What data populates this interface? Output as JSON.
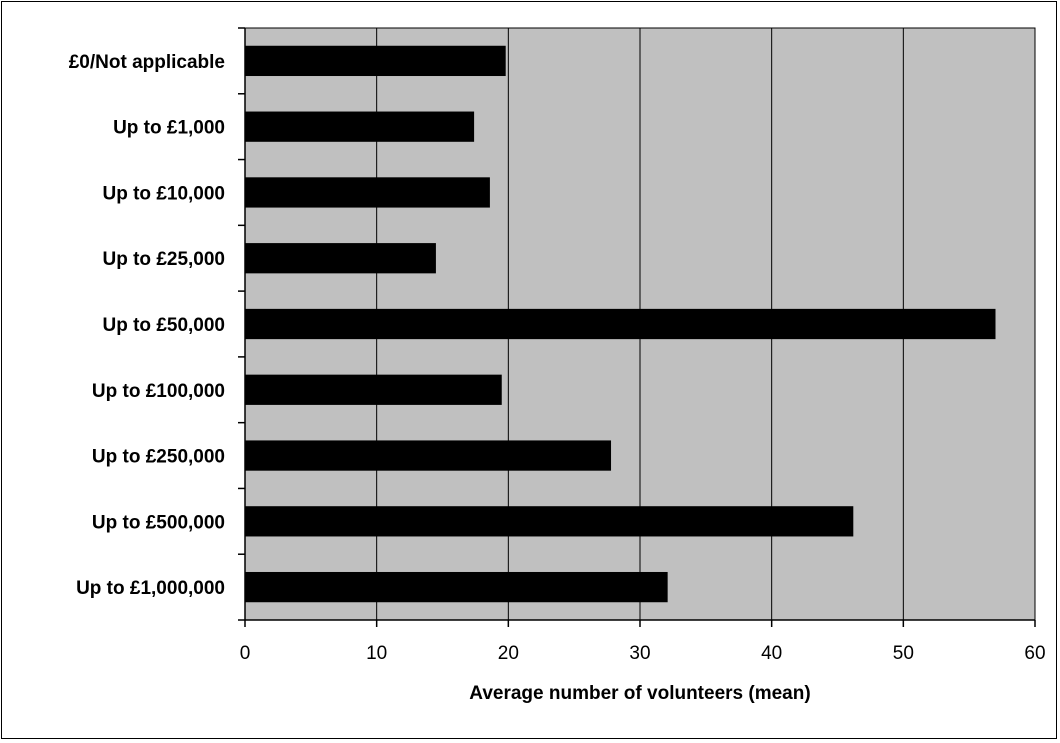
{
  "chart_data": {
    "type": "bar",
    "orientation": "horizontal",
    "categories": [
      "£0/Not applicable",
      "Up to £1,000",
      "Up to £10,000",
      "Up to £25,000",
      "Up to £50,000",
      "Up to £100,000",
      "Up to £250,000",
      "Up to £500,000",
      "Up to £1,000,000"
    ],
    "values": [
      19.8,
      17.4,
      18.6,
      14.5,
      57.0,
      19.5,
      27.8,
      46.2,
      32.1
    ],
    "title": "",
    "xlabel": "Average number of volunteers (mean)",
    "ylabel": "",
    "xlim": [
      0,
      60
    ],
    "xticks": [
      "0",
      "10",
      "20",
      "30",
      "40",
      "50",
      "60"
    ],
    "grid": "vertical",
    "legend": "none",
    "colors": {
      "bar": "#000000",
      "plot_background": "#c0c0c0",
      "gridline": "#000000",
      "page_background": "#ffffff"
    }
  }
}
